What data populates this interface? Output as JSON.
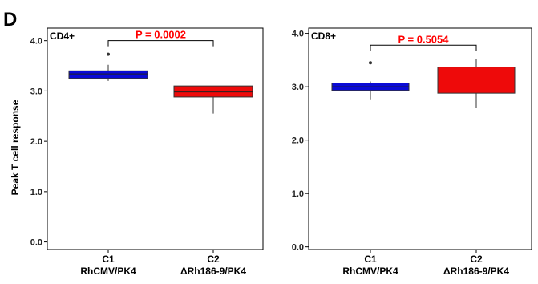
{
  "figure_letter": "D",
  "ylabel": "Peak T cell response",
  "colors": {
    "c1_box": "#0a0ad6",
    "c2_box": "#ee0a0a",
    "pvalue_text": "#ff0000",
    "frame": "#000000"
  },
  "chart_data": [
    {
      "type": "box",
      "panel_label": "CD4+",
      "ylim": [
        -0.15,
        4.25
      ],
      "yticks": [
        {
          "value": 0.0,
          "label": "0.0"
        },
        {
          "value": 1.0,
          "label": "1.0"
        },
        {
          "value": 2.0,
          "label": "2.0"
        },
        {
          "value": 3.0,
          "label": "3.0"
        },
        {
          "value": 4.0,
          "label": "4.0"
        }
      ],
      "categories": [
        {
          "code": "C1",
          "name": "RhCMV/PK4"
        },
        {
          "code": "C2",
          "name": "ΔRh186-9/PK4"
        }
      ],
      "boxes": [
        {
          "category": "C1",
          "whisker_low": 3.2,
          "q1": 3.25,
          "median": 3.34,
          "q3": 3.4,
          "whisker_high": 3.52,
          "outliers": [
            3.73
          ],
          "color": "#0a0ad6"
        },
        {
          "category": "C2",
          "whisker_low": 2.55,
          "q1": 2.88,
          "median": 2.98,
          "q3": 3.1,
          "whisker_high": 3.1,
          "outliers": [],
          "color": "#ee0a0a"
        }
      ],
      "comparison": {
        "text": "P = 0.0002",
        "y": 4.0
      }
    },
    {
      "type": "box",
      "panel_label": "CD8+",
      "ylim": [
        -0.05,
        4.1
      ],
      "yticks": [
        {
          "value": 0.0,
          "label": "0.0"
        },
        {
          "value": 1.0,
          "label": "1.0"
        },
        {
          "value": 2.0,
          "label": "2.0"
        },
        {
          "value": 3.0,
          "label": "3.0"
        },
        {
          "value": 4.0,
          "label": "4.0"
        }
      ],
      "categories": [
        {
          "code": "C1",
          "name": "RhCMV/PK4"
        },
        {
          "code": "C2",
          "name": "ΔRh186-9/PK4"
        }
      ],
      "boxes": [
        {
          "category": "C1",
          "whisker_low": 2.75,
          "q1": 2.93,
          "median": 3.0,
          "q3": 3.07,
          "whisker_high": 3.1,
          "outliers": [
            3.45
          ],
          "color": "#0a0ad6"
        },
        {
          "category": "C2",
          "whisker_low": 2.6,
          "q1": 2.88,
          "median": 3.22,
          "q3": 3.37,
          "whisker_high": 3.52,
          "outliers": [],
          "color": "#ee0a0a"
        }
      ],
      "comparison": {
        "text": "P = 0.5054",
        "y": 3.78
      }
    }
  ]
}
